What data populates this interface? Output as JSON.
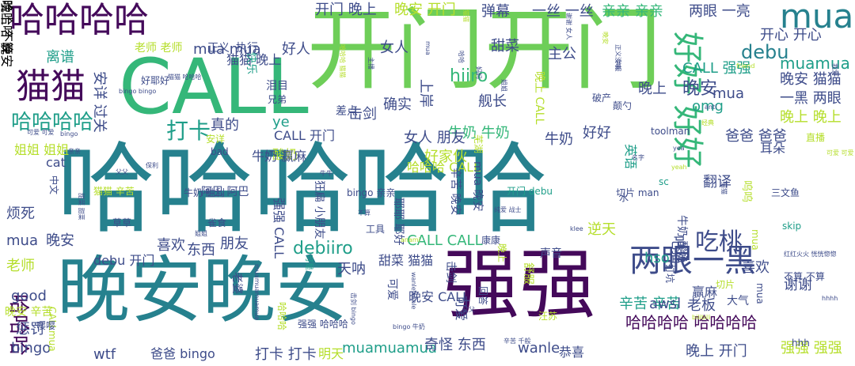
{
  "palette": {
    "purple": "#44095a",
    "indigo": "#3e4c8a",
    "blue": "#31688e",
    "teal": "#26818e",
    "green_teal": "#1f9e89",
    "green": "#35b779",
    "light_green": "#6ece58",
    "lime": "#b5de2b",
    "yellow": "#e5e419"
  },
  "words": [
    {
      "text": "哈哈哈哈哈",
      "color": "#26818e"
    },
    {
      "text": "开门开门",
      "color": "#6ece58"
    },
    {
      "text": "CALL",
      "color": "#35b779"
    },
    {
      "text": "晚安晚安",
      "color": "#26818e"
    },
    {
      "text": "强强",
      "color": "#44095a"
    },
    {
      "text": "哈哈哈哈",
      "color": "#44095a"
    },
    {
      "text": "哈哈哈",
      "color": "#44095a"
    },
    {
      "text": "mua",
      "color": "#26818e"
    },
    {
      "text": "猫猫",
      "color": "#44095a"
    },
    {
      "text": "两眼一黑",
      "color": "#3e4c8a"
    },
    {
      "text": "哈哈哈哈 哈哈哈哈",
      "color": "#44095a"
    },
    {
      "text": "好好 好好",
      "color": "#35b779"
    },
    {
      "text": "打卡",
      "color": "#1f9e89"
    },
    {
      "text": "吃桃",
      "color": "#3e4c8a"
    },
    {
      "text": "哈哈哈哈",
      "color": "#1f9e89"
    },
    {
      "text": "开门 晚上",
      "color": "#3e4c8a"
    },
    {
      "text": "晚安 开门",
      "color": "#b5de2b"
    },
    {
      "text": "弹幕",
      "color": "#3e4c8a"
    },
    {
      "text": "一丝 一丝",
      "color": "#3e4c8a"
    },
    {
      "text": "亲亲 亲亲",
      "color": "#35b779"
    },
    {
      "text": "两眼 一亮",
      "color": "#3e4c8a"
    },
    {
      "text": "debu",
      "color": "#26818e"
    },
    {
      "text": "CALL 强强",
      "color": "#1f9e89"
    },
    {
      "text": "muamua",
      "color": "#1f9e89"
    },
    {
      "text": "开心 开心",
      "color": "#3e4c8a"
    },
    {
      "text": "晚安 猫猫",
      "color": "#3e4c8a"
    },
    {
      "text": "一黑 两眼",
      "color": "#3e4c8a"
    },
    {
      "text": "晚上 晚上",
      "color": "#b5de2b"
    },
    {
      "text": "晚安",
      "color": "#3e4c8a"
    },
    {
      "text": "omg",
      "color": "#1f9e89"
    },
    {
      "text": "mua",
      "color": "#3e4c8a"
    },
    {
      "text": "晚上",
      "color": "#3e4c8a"
    },
    {
      "text": "主公",
      "color": "#3e4c8a"
    },
    {
      "text": "甜菜",
      "color": "#3e4c8a"
    },
    {
      "text": "女人",
      "color": "#3e4c8a"
    },
    {
      "text": "hiiro",
      "color": "#35b779"
    },
    {
      "text": "确实",
      "color": "#3e4c8a"
    },
    {
      "text": "舰长",
      "color": "#3e4c8a"
    },
    {
      "text": "击剑",
      "color": "#3e4c8a"
    },
    {
      "text": "好人",
      "color": "#3e4c8a"
    },
    {
      "text": "猫猫 晚上",
      "color": "#3e4c8a"
    },
    {
      "text": "mua mua",
      "color": "#3e4c8a"
    },
    {
      "text": "离谱",
      "color": "#1f9e89"
    },
    {
      "text": "老师 老师",
      "color": "#b5de2b"
    },
    {
      "text": "正义",
      "color": "#3e4c8a"
    },
    {
      "text": "执行",
      "color": "#3e4c8a"
    },
    {
      "text": "好耶好",
      "color": "#3e4c8a"
    },
    {
      "text": "真的",
      "color": "#3e4c8a"
    },
    {
      "text": "ye",
      "color": "#1f9e89"
    },
    {
      "text": "CALL 开门",
      "color": "#3e4c8a"
    },
    {
      "text": "牛奶 牛奶",
      "color": "#35b779"
    },
    {
      "text": "好好",
      "color": "#3e4c8a"
    },
    {
      "text": "牛奶",
      "color": "#3e4c8a"
    },
    {
      "text": "爸爸 爸爸",
      "color": "#3e4c8a"
    },
    {
      "text": "toolman",
      "color": "#3e4c8a"
    },
    {
      "text": "酸奶",
      "color": "#b5de2b"
    },
    {
      "text": "女人 朋友",
      "color": "#3e4c8a"
    },
    {
      "text": "好家伙",
      "color": "#b5de2b"
    },
    {
      "text": "哈哈哈 CALL",
      "color": "#b5de2b"
    },
    {
      "text": "耳朵",
      "color": "#3e4c8a"
    },
    {
      "text": "安详",
      "color": "#b5de2b"
    },
    {
      "text": "bad",
      "color": "#3e4c8a"
    },
    {
      "text": "阿巴 阿巴",
      "color": "#3e4c8a"
    },
    {
      "text": "牛奶 胜利",
      "color": "#3e4c8a"
    },
    {
      "text": "bingo 亲亲",
      "color": "#3e4c8a"
    },
    {
      "text": "开门 debu",
      "color": "#1f9e89"
    },
    {
      "text": "切片 man",
      "color": "#3e4c8a"
    },
    {
      "text": "三文鱼",
      "color": "#3e4c8a"
    },
    {
      "text": "skip",
      "color": "#1f9e89"
    },
    {
      "text": "猫猫 辛苦",
      "color": "#b5de2b"
    },
    {
      "text": "草草",
      "color": "#3e4c8a"
    },
    {
      "text": "雀食",
      "color": "#3e4c8a"
    },
    {
      "text": "烦死",
      "color": "#3e4c8a"
    },
    {
      "text": "mua",
      "color": "#3e4c8a"
    },
    {
      "text": "晚安",
      "color": "#3e4c8a"
    },
    {
      "text": "老师",
      "color": "#b5de2b"
    },
    {
      "text": "debu 开门",
      "color": "#3e4c8a"
    },
    {
      "text": "喜欢",
      "color": "#3e4c8a"
    },
    {
      "text": "东西",
      "color": "#3e4c8a"
    },
    {
      "text": "朋友",
      "color": "#3e4c8a"
    },
    {
      "text": "天呐",
      "color": "#3e4c8a"
    },
    {
      "text": "debiiro",
      "color": "#1f9e89"
    },
    {
      "text": "CALL CALL",
      "color": "#35b779"
    },
    {
      "text": "甜菜 猫猫",
      "color": "#3e4c8a"
    },
    {
      "text": "逆天",
      "color": "#b5de2b"
    },
    {
      "text": "hso",
      "color": "#1f9e89"
    },
    {
      "text": "赢麻",
      "color": "#3e4c8a"
    },
    {
      "text": "喜欢",
      "color": "#3e4c8a"
    },
    {
      "text": "谢谢",
      "color": "#3e4c8a"
    },
    {
      "text": "good",
      "color": "#3e4c8a"
    },
    {
      "text": "晚安 辛苦",
      "color": "#b5de2b"
    },
    {
      "text": "惩罚",
      "color": "#3e4c8a"
    },
    {
      "text": "bingo",
      "color": "#3e4c8a"
    },
    {
      "text": "wtf",
      "color": "#3e4c8a"
    },
    {
      "text": "爸爸 bingo",
      "color": "#3e4c8a"
    },
    {
      "text": "打卡 打卡",
      "color": "#3e4c8a"
    },
    {
      "text": "明天",
      "color": "#b5de2b"
    },
    {
      "text": "muamuamua",
      "color": "#1f9e89"
    },
    {
      "text": "奇怪 东西",
      "color": "#3e4c8a"
    },
    {
      "text": "wanle",
      "color": "#3e4c8a"
    },
    {
      "text": "恭喜",
      "color": "#3e4c8a"
    },
    {
      "text": "晚上 开门",
      "color": "#3e4c8a"
    },
    {
      "text": "强强 强强",
      "color": "#b5de2b"
    },
    {
      "text": "辛苦 辛苦",
      "color": "#1f9e89"
    },
    {
      "text": "awsl",
      "color": "#3e4c8a"
    },
    {
      "text": "老板",
      "color": "#3e4c8a"
    },
    {
      "text": "大气",
      "color": "#3e4c8a"
    },
    {
      "text": "声音",
      "color": "#3e4c8a"
    },
    {
      "text": "康康",
      "color": "#3e4c8a"
    },
    {
      "text": "工具",
      "color": "#3e4c8a"
    },
    {
      "text": "差点",
      "color": "#3e4c8a"
    },
    {
      "text": "泪目",
      "color": "#3e4c8a"
    },
    {
      "text": "兄弟",
      "color": "#3e4c8a"
    },
    {
      "text": "破产",
      "color": "#3e4c8a"
    },
    {
      "text": "颠勺",
      "color": "#3e4c8a"
    },
    {
      "text": "直播",
      "color": "#b5de2b"
    },
    {
      "text": "不算 不算",
      "color": "#3e4c8a"
    },
    {
      "text": "切片",
      "color": "#b5de2b"
    },
    {
      "text": "hhh",
      "color": "#3e4c8a"
    },
    {
      "text": "翻译",
      "color": "#3e4c8a"
    },
    {
      "text": "牛奶 赢麻",
      "color": "#3e4c8a"
    },
    {
      "text": "晚安 CALL",
      "color": "#3e4c8a"
    },
    {
      "text": "可爱",
      "color": "#3e4c8a"
    },
    {
      "text": "上岸",
      "color": "#3e4c8a"
    },
    {
      "text": "击剑",
      "color": "#3e4c8a"
    },
    {
      "text": "舒服",
      "color": "#b5de2b"
    },
    {
      "text": "老婆",
      "color": "#3e4c8a"
    },
    {
      "text": "强强 CALL",
      "color": "#3e4c8a"
    },
    {
      "text": "狂扁 小朋友",
      "color": "#3e4c8a"
    },
    {
      "text": "耶耶 耶好",
      "color": "#3e4c8a"
    },
    {
      "text": "辛苦 晚安",
      "color": "#3e4c8a"
    },
    {
      "text": "mua 晚安",
      "color": "#3e4c8a"
    },
    {
      "text": "安详 过关",
      "color": "#3e4c8a"
    },
    {
      "text": "快乐",
      "color": "#1f9e89"
    },
    {
      "text": "晚上 CALL",
      "color": "#b5de2b"
    },
    {
      "text": "晚上",
      "color": "#b5de2b"
    },
    {
      "text": "吧猫",
      "color": "#3e4c8a"
    },
    {
      "text": "英语",
      "color": "#1f9e89"
    },
    {
      "text": "可爱",
      "color": "#3e4c8a"
    },
    {
      "text": "芜湖",
      "color": "#b5de2b"
    },
    {
      "text": "中文",
      "color": "#3e4c8a"
    },
    {
      "text": "cat",
      "color": "#3e4c8a"
    },
    {
      "text": "sc",
      "color": "#1f9e89"
    },
    {
      "text": "水",
      "color": "#3e4c8a"
    },
    {
      "text": "姐姐 姐姐",
      "color": "#b5de2b"
    },
    {
      "text": "CALLmua",
      "color": "#b5de2b"
    },
    {
      "text": "嘤嘤",
      "color": "#3e4c8a"
    },
    {
      "text": "可是",
      "color": "#1f9e89"
    },
    {
      "text": "呜呜",
      "color": "#b5de2b"
    },
    {
      "text": "牛奶 酸奶",
      "color": "#3e4c8a"
    },
    {
      "text": "回答",
      "color": "#3e4c8a"
    },
    {
      "text": "汪苏",
      "color": "#b5de2b"
    },
    {
      "text": "哈哈哈",
      "color": "#b5de2b"
    },
    {
      "text": "强强 哈哈哈",
      "color": "#3e4c8a"
    },
    {
      "text": "打坑",
      "color": "#3e4c8a"
    },
    {
      "text": "mua",
      "color": "#b5de2b"
    },
    {
      "text": "mua",
      "color": "#3e4c8a"
    },
    {
      "text": "mua",
      "color": "#3e4c8a"
    },
    {
      "text": "哈哈哈 猫猫",
      "color": "#b5de2b"
    },
    {
      "text": "主播",
      "color": "#3e4c8a"
    },
    {
      "text": "没事",
      "color": "#3e4c8a"
    },
    {
      "text": "正义 举报",
      "color": "#3e4c8a"
    },
    {
      "text": "名字",
      "color": "#3e4c8a"
    },
    {
      "text": "yea",
      "color": "#3e4c8a"
    },
    {
      "text": "yeah",
      "color": "#b5de2b"
    },
    {
      "text": "friend",
      "color": "#b5de2b"
    },
    {
      "text": "anti",
      "color": "#3e4c8a"
    },
    {
      "text": "经典",
      "color": "#b5de2b"
    },
    {
      "text": "bingo bingo",
      "color": "#3e4c8a"
    },
    {
      "text": "猫猫 哈哈哈",
      "color": "#3e4c8a"
    },
    {
      "text": "可爱 可爱",
      "color": "#3e4c8a"
    },
    {
      "text": "bingo",
      "color": "#3e4c8a"
    },
    {
      "text": "亲亲",
      "color": "#3e4c8a"
    },
    {
      "text": "父父",
      "color": "#3e4c8a"
    },
    {
      "text": "保利",
      "color": "#3e4c8a"
    },
    {
      "text": "甜菜 甜菜",
      "color": "#3e4c8a"
    },
    {
      "text": "muamuamuamua",
      "color": "#3e4c8a"
    },
    {
      "text": "wanlewanle",
      "color": "#3e4c8a"
    },
    {
      "text": "击剑 bingo",
      "color": "#3e4c8a"
    },
    {
      "text": "bingo 牛奶",
      "color": "#3e4c8a"
    },
    {
      "text": "父父",
      "color": "#3e4c8a"
    },
    {
      "text": "辛苦 千般",
      "color": "#3e4c8a"
    },
    {
      "text": "bilibili",
      "color": "#b5de2b"
    },
    {
      "text": "hhhh",
      "color": "#3e4c8a"
    },
    {
      "text": "牛牛",
      "color": "#3e4c8a"
    },
    {
      "text": "不算",
      "color": "#3e4c8a"
    },
    {
      "text": "anami",
      "color": "#b5de2b"
    },
    {
      "text": "纯爱 战士",
      "color": "#3e4c8a"
    },
    {
      "text": "klee",
      "color": "#3e4c8a"
    },
    {
      "text": "姐姐",
      "color": "#3e4c8a"
    },
    {
      "text": "红红火火 恍恍惚惚",
      "color": "#3e4c8a"
    },
    {
      "text": "可爱 可爱",
      "color": "#b5de2b"
    },
    {
      "text": "我爱",
      "color": "#3e4c8a"
    },
    {
      "text": "猫猫",
      "color": "#3e4c8a"
    },
    {
      "text": "猫猫",
      "color": "#b5de2b"
    },
    {
      "text": "哈哈",
      "color": "#3e4c8a"
    },
    {
      "text": "妈妈",
      "color": "#3e4c8a"
    },
    {
      "text": "姐姐",
      "color": "#3e4c8a"
    },
    {
      "text": "谢谢 女人",
      "color": "#3e4c8a"
    },
    {
      "text": "晚安",
      "color": "#b5de2b"
    },
    {
      "text": "哈哈哈 晚安",
      "color": "#b5de2b"
    },
    {
      "text": "晚上 不算",
      "color": "#b5de2b"
    }
  ]
}
